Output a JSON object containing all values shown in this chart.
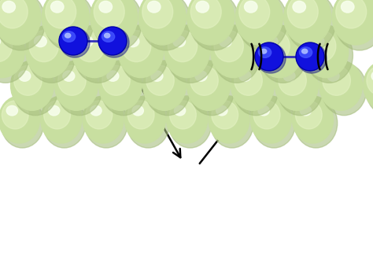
{
  "surface_color_base": "#c8dfa0",
  "surface_color_light": "#e8f5c8",
  "surface_color_dark": "#a8bf80",
  "surface_color_shadow": "#90a870",
  "molecule_color_dark": "#0000cc",
  "molecule_color_mid": "#2222ee",
  "molecule_color_light": "#4444ff",
  "bond_color": "#3333bb",
  "arrow_color": "#000000",
  "bg_color": "#ffffff",
  "n_cols": 8,
  "n_rows": 4,
  "figsize": [
    4.74,
    3.47
  ],
  "dpi": 100
}
